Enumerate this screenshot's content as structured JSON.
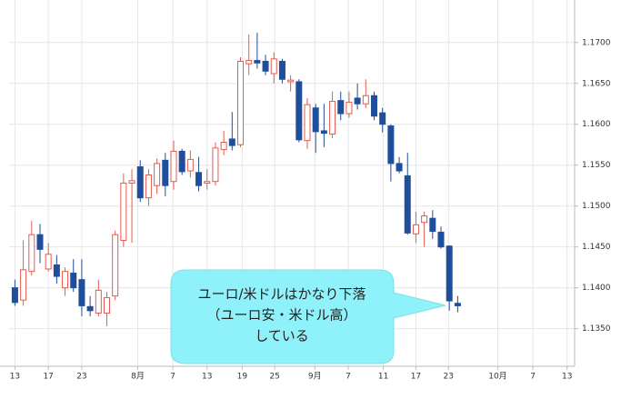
{
  "chart_data": {
    "type": "candlestick",
    "up_color": "#e8594f",
    "down_color": "#1f4e9c",
    "grid": true,
    "xlim": [
      -0.7,
      67
    ],
    "ylim": [
      1.1304,
      1.1752
    ],
    "yticks": [
      {
        "value": 1.135,
        "label": "1.1350"
      },
      {
        "value": 1.14,
        "label": "1.1400"
      },
      {
        "value": 1.145,
        "label": "1.1450"
      },
      {
        "value": 1.15,
        "label": "1.1500"
      },
      {
        "value": 1.155,
        "label": "1.1550"
      },
      {
        "value": 1.16,
        "label": "1.1600"
      },
      {
        "value": 1.165,
        "label": "1.1650"
      },
      {
        "value": 1.17,
        "label": "1.1700"
      }
    ],
    "xticks": [
      {
        "value": 0,
        "label": "13"
      },
      {
        "value": 4,
        "label": "17"
      },
      {
        "value": 8,
        "label": "23"
      },
      {
        "value": 14.7,
        "label": "8月"
      },
      {
        "value": 18.9,
        "label": "7"
      },
      {
        "value": 23,
        "label": "13"
      },
      {
        "value": 27.2,
        "label": "19"
      },
      {
        "value": 31.1,
        "label": "25"
      },
      {
        "value": 35.9,
        "label": "9月"
      },
      {
        "value": 39.9,
        "label": "7"
      },
      {
        "value": 44.1,
        "label": "11"
      },
      {
        "value": 48,
        "label": "17"
      },
      {
        "value": 51.9,
        "label": "23"
      },
      {
        "value": 57.8,
        "label": "10月"
      },
      {
        "value": 62,
        "label": "7"
      },
      {
        "value": 66.1,
        "label": "13"
      }
    ],
    "open": [
      1.14,
      1.1385,
      1.142,
      1.1465,
      1.1423,
      1.1428,
      1.14,
      1.1418,
      1.141,
      1.1377,
      1.1369,
      1.1369,
      1.139,
      1.1458,
      1.1528,
      1.1548,
      1.151,
      1.1525,
      1.1556,
      1.153,
      1.1567,
      1.1543,
      1.1541,
      1.1528,
      1.153,
      1.1569,
      1.1582,
      1.1575,
      1.1674,
      1.1678,
      1.1677,
      1.1662,
      1.1677,
      1.1652,
      1.1652,
      1.158,
      1.162,
      1.1592,
      1.1588,
      1.1629,
      1.1613,
      1.1632,
      1.1625,
      1.1635,
      1.1614,
      1.1598,
      1.1552,
      1.1537,
      1.1466,
      1.148,
      1.1485,
      1.1468,
      1.1451,
      1.1381
    ],
    "high": [
      1.141,
      1.1458,
      1.1482,
      1.1478,
      1.1455,
      1.144,
      1.1425,
      1.1435,
      1.1435,
      1.139,
      1.141,
      1.1395,
      1.147,
      1.154,
      1.1545,
      1.1556,
      1.1545,
      1.1558,
      1.1565,
      1.158,
      1.157,
      1.1568,
      1.156,
      1.1545,
      1.1578,
      1.1592,
      1.1615,
      1.1682,
      1.171,
      1.1712,
      1.1685,
      1.1688,
      1.168,
      1.166,
      1.1655,
      1.1632,
      1.1625,
      1.1625,
      1.164,
      1.164,
      1.164,
      1.165,
      1.1655,
      1.164,
      1.162,
      1.16,
      1.156,
      1.1565,
      1.1493,
      1.1493,
      1.1495,
      1.1475,
      1.1452,
      1.139
    ],
    "low": [
      1.1378,
      1.1378,
      1.1415,
      1.143,
      1.142,
      1.1405,
      1.139,
      1.1395,
      1.1365,
      1.1365,
      1.1365,
      1.1353,
      1.1385,
      1.145,
      1.1455,
      1.1505,
      1.15,
      1.1515,
      1.1512,
      1.152,
      1.1538,
      1.1535,
      1.1518,
      1.152,
      1.1525,
      1.1562,
      1.1568,
      1.1572,
      1.166,
      1.1668,
      1.166,
      1.165,
      1.165,
      1.164,
      1.1578,
      1.157,
      1.1565,
      1.1572,
      1.1583,
      1.1605,
      1.1608,
      1.1618,
      1.162,
      1.1605,
      1.159,
      1.153,
      1.154,
      1.1465,
      1.1455,
      1.145,
      1.146,
      1.1448,
      1.1372,
      1.137
    ],
    "close": [
      1.1382,
      1.1422,
      1.1465,
      1.1447,
      1.1441,
      1.1414,
      1.142,
      1.14,
      1.1378,
      1.1372,
      1.1397,
      1.1388,
      1.1465,
      1.1528,
      1.1531,
      1.151,
      1.1538,
      1.1552,
      1.1525,
      1.1567,
      1.1542,
      1.1557,
      1.1525,
      1.153,
      1.1571,
      1.1578,
      1.1574,
      1.1677,
      1.1678,
      1.1675,
      1.1665,
      1.168,
      1.1655,
      1.1654,
      1.1581,
      1.1624,
      1.1591,
      1.1589,
      1.1628,
      1.1613,
      1.1627,
      1.1625,
      1.1635,
      1.161,
      1.16,
      1.1552,
      1.1543,
      1.1467,
      1.1477,
      1.1488,
      1.1469,
      1.145,
      1.1384,
      1.1378
    ],
    "annotation": [
      "ユーロ/米ドルはかなり下落",
      "（ユーロ安・米ドル高）",
      "している"
    ]
  }
}
